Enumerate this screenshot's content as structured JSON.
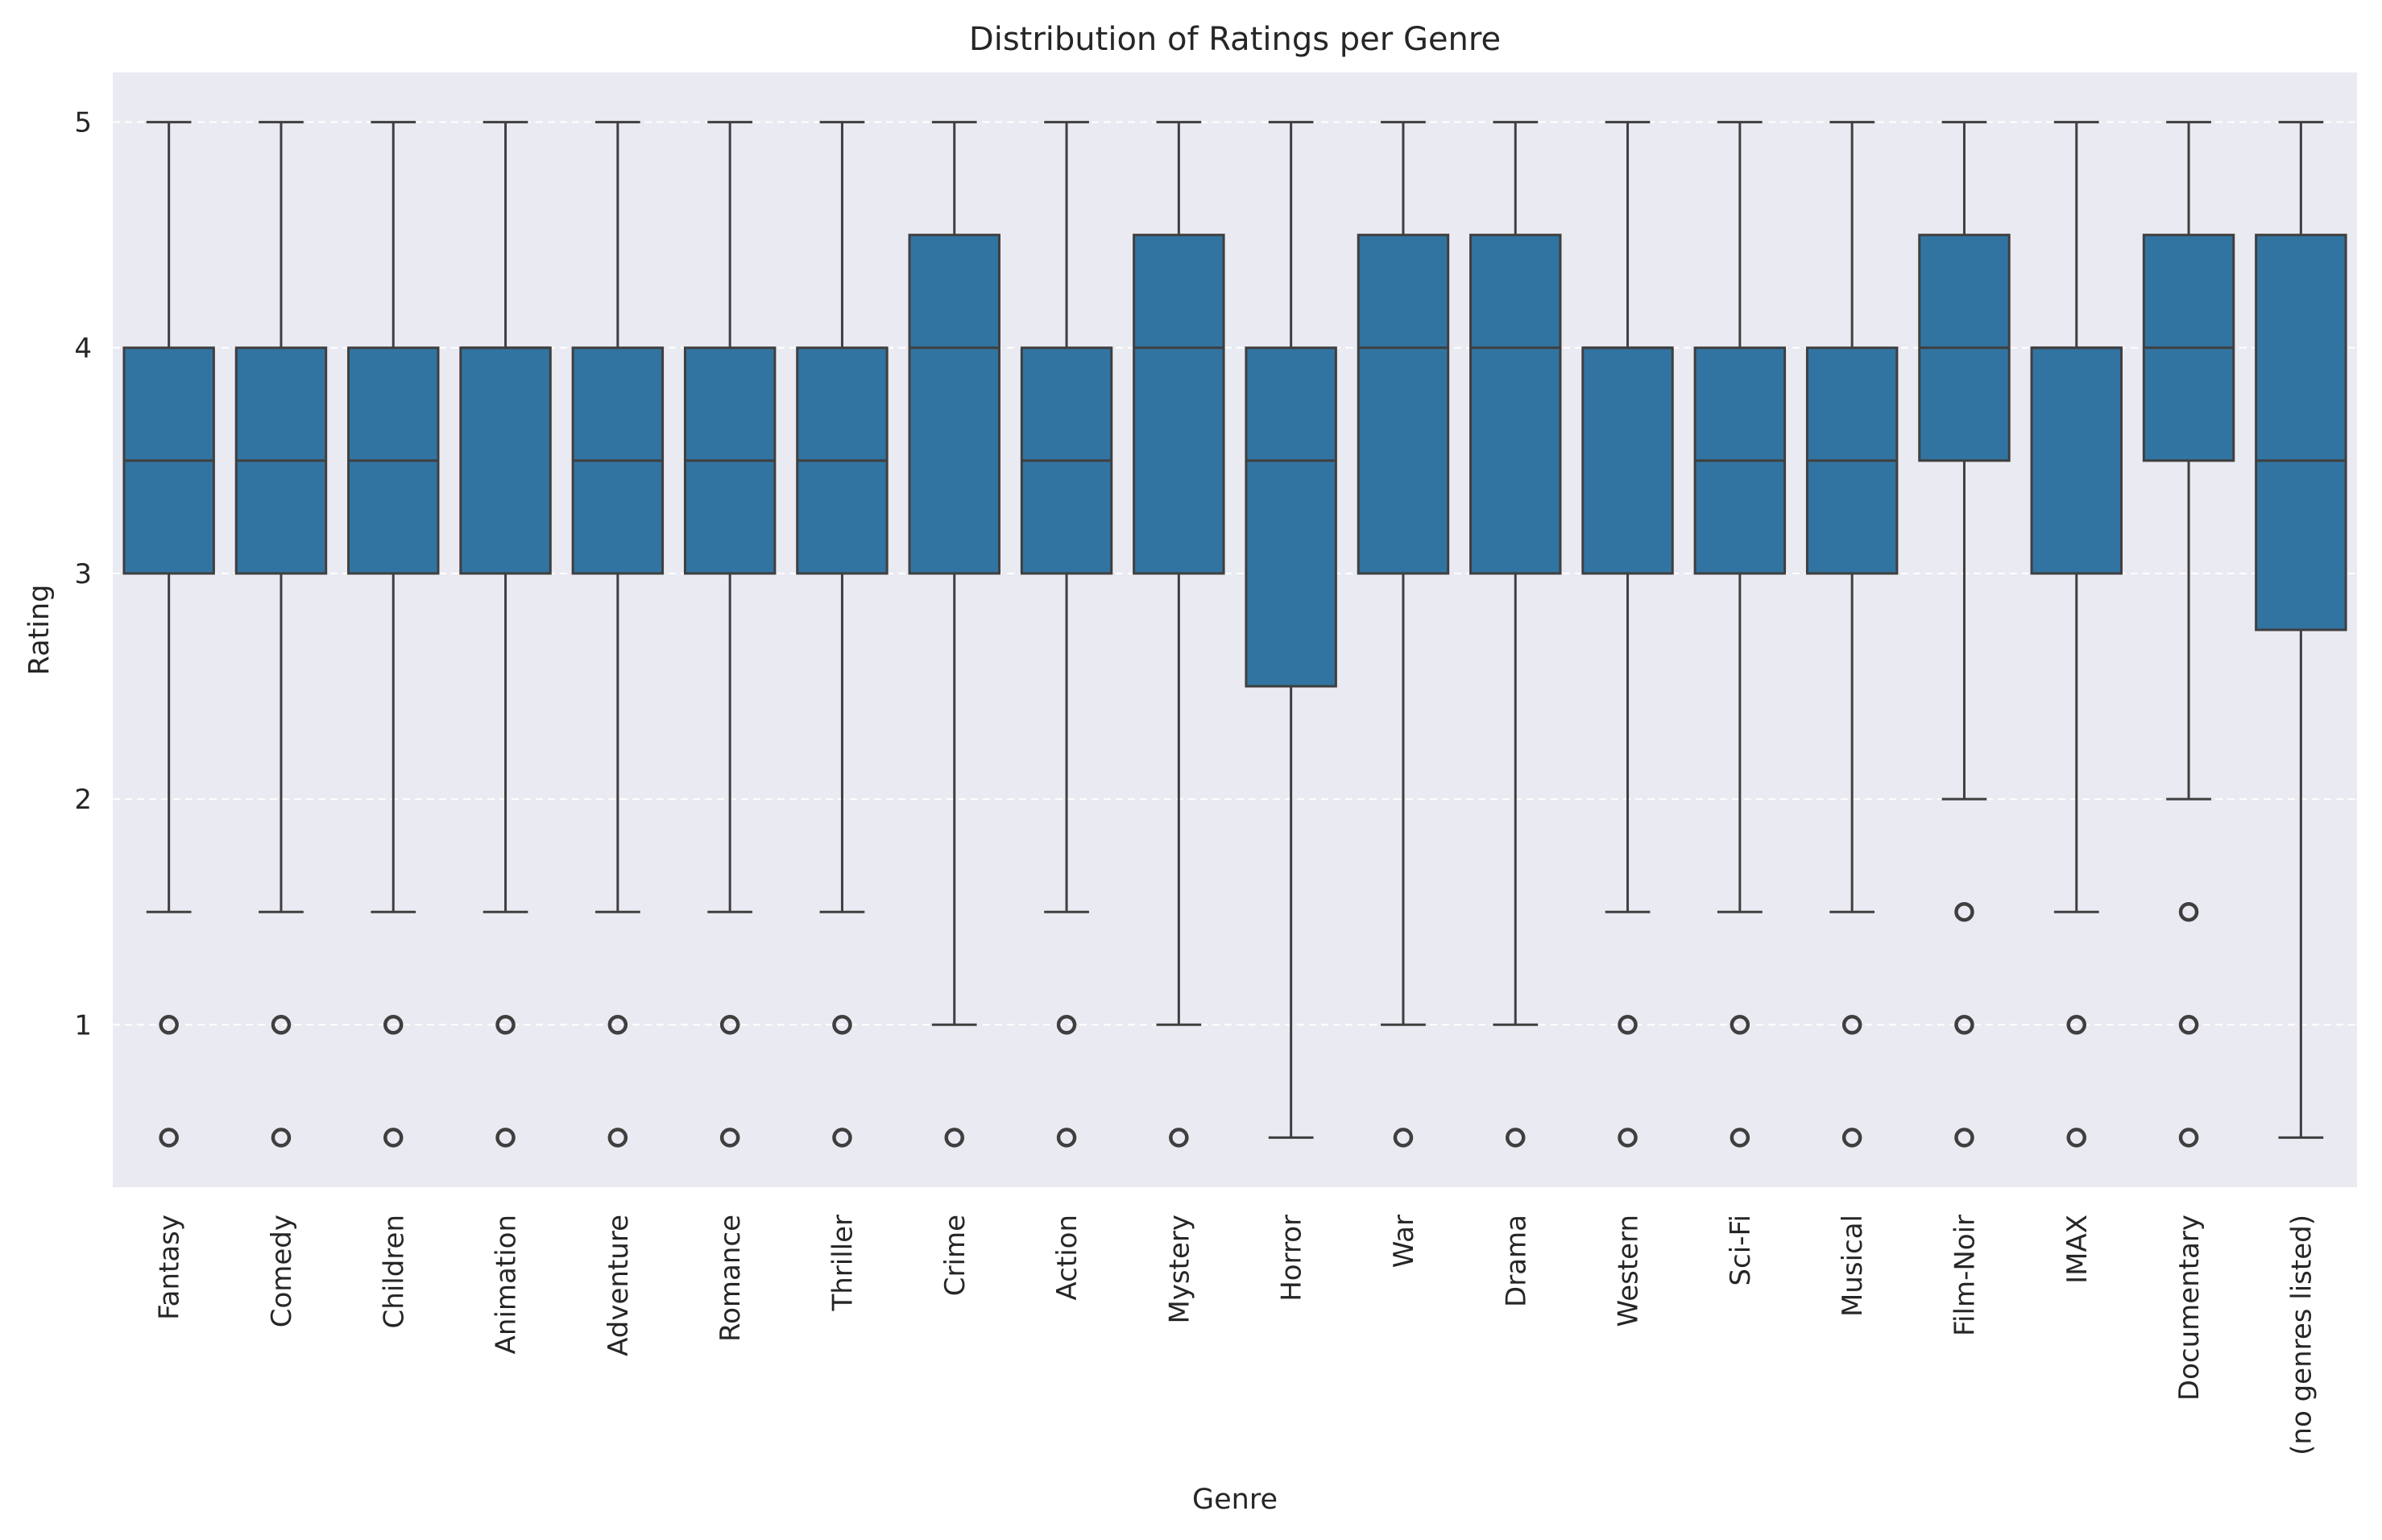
{
  "chart_data": {
    "type": "boxplot",
    "title": "Distribution of Ratings per Genre",
    "xlabel": "Genre",
    "ylabel": "Rating",
    "ylim": [
      0.28,
      5.22
    ],
    "yticks": [
      1,
      2,
      3,
      4,
      5
    ],
    "grid": "y-dashed",
    "colors": {
      "background": "#eaeaf2",
      "box": "#3274a1",
      "line": "#3f3f3f",
      "grid": "#ffffff"
    },
    "categories": [
      "Fantasy",
      "Comedy",
      "Children",
      "Animation",
      "Adventure",
      "Romance",
      "Thriller",
      "Crime",
      "Action",
      "Mystery",
      "Horror",
      "War",
      "Drama",
      "Western",
      "Sci-Fi",
      "Musical",
      "Film-Noir",
      "IMAX",
      "Documentary",
      "(no genres listed)"
    ],
    "boxes": [
      {
        "q1": 3,
        "median": 3.5,
        "q3": 4,
        "whislo": 1.5,
        "whishi": 5,
        "fliers": [
          1,
          0.5
        ]
      },
      {
        "q1": 3,
        "median": 3.5,
        "q3": 4,
        "whislo": 1.5,
        "whishi": 5,
        "fliers": [
          1,
          0.5
        ]
      },
      {
        "q1": 3,
        "median": 3.5,
        "q3": 4,
        "whislo": 1.5,
        "whishi": 5,
        "fliers": [
          1,
          0.5
        ]
      },
      {
        "q1": 3,
        "median": 4,
        "q3": 4,
        "whislo": 1.5,
        "whishi": 5,
        "fliers": [
          1,
          0.5
        ]
      },
      {
        "q1": 3,
        "median": 3.5,
        "q3": 4,
        "whislo": 1.5,
        "whishi": 5,
        "fliers": [
          1,
          0.5
        ]
      },
      {
        "q1": 3,
        "median": 3.5,
        "q3": 4,
        "whislo": 1.5,
        "whishi": 5,
        "fliers": [
          1,
          0.5
        ]
      },
      {
        "q1": 3,
        "median": 3.5,
        "q3": 4,
        "whislo": 1.5,
        "whishi": 5,
        "fliers": [
          1,
          0.5
        ]
      },
      {
        "q1": 3,
        "median": 4,
        "q3": 4.5,
        "whislo": 1,
        "whishi": 5,
        "fliers": [
          0.5
        ]
      },
      {
        "q1": 3,
        "median": 3.5,
        "q3": 4,
        "whislo": 1.5,
        "whishi": 5,
        "fliers": [
          1,
          0.5
        ]
      },
      {
        "q1": 3,
        "median": 4,
        "q3": 4.5,
        "whislo": 1,
        "whishi": 5,
        "fliers": [
          0.5
        ]
      },
      {
        "q1": 2.5,
        "median": 3.5,
        "q3": 4,
        "whislo": 0.5,
        "whishi": 5,
        "fliers": []
      },
      {
        "q1": 3,
        "median": 4,
        "q3": 4.5,
        "whislo": 1,
        "whishi": 5,
        "fliers": [
          0.5
        ]
      },
      {
        "q1": 3,
        "median": 4,
        "q3": 4.5,
        "whislo": 1,
        "whishi": 5,
        "fliers": [
          0.5
        ]
      },
      {
        "q1": 3,
        "median": 4,
        "q3": 4,
        "whislo": 1.5,
        "whishi": 5,
        "fliers": [
          1,
          0.5
        ]
      },
      {
        "q1": 3,
        "median": 3.5,
        "q3": 4,
        "whislo": 1.5,
        "whishi": 5,
        "fliers": [
          1,
          0.5
        ]
      },
      {
        "q1": 3,
        "median": 3.5,
        "q3": 4,
        "whislo": 1.5,
        "whishi": 5,
        "fliers": [
          1,
          0.5
        ]
      },
      {
        "q1": 3.5,
        "median": 4,
        "q3": 4.5,
        "whislo": 2,
        "whishi": 5,
        "fliers": [
          1.5,
          1,
          0.5
        ]
      },
      {
        "q1": 3,
        "median": 4,
        "q3": 4,
        "whislo": 1.5,
        "whishi": 5,
        "fliers": [
          1,
          0.5
        ]
      },
      {
        "q1": 3.5,
        "median": 4,
        "q3": 4.5,
        "whislo": 2,
        "whishi": 5,
        "fliers": [
          1.5,
          1,
          0.5
        ]
      },
      {
        "q1": 2.75,
        "median": 3.5,
        "q3": 4.5,
        "whislo": 0.5,
        "whishi": 5,
        "fliers": []
      }
    ]
  }
}
